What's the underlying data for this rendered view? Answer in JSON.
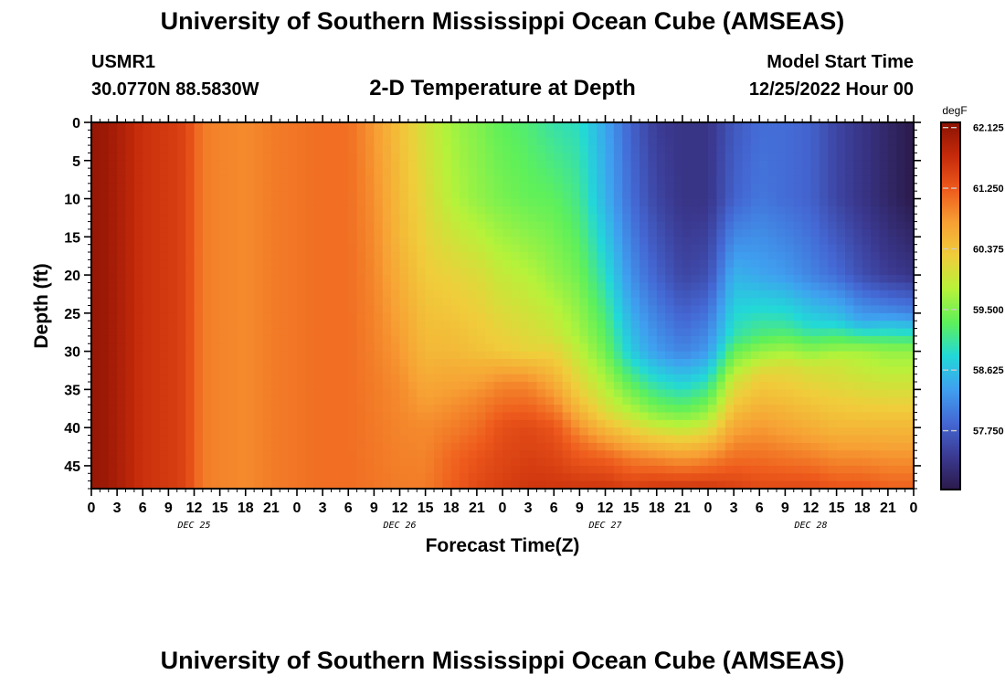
{
  "header": {
    "title": "University of Southern Mississippi Ocean Cube (AMSEAS)",
    "station_id": "USMR1",
    "coordinates": "30.0770N  88.5830W",
    "plot_title": "2-D Temperature at Depth",
    "model_start_label": "Model Start Time",
    "model_start_value": "12/25/2022 Hour 00"
  },
  "footer": {
    "title": "University of Southern Mississippi Ocean Cube (AMSEAS)"
  },
  "chart_data": {
    "type": "heatmap",
    "xlabel": "Forecast Time(Z)",
    "ylabel": "Depth (ft)",
    "x_unit": "hours since model start",
    "xlim": [
      0,
      96
    ],
    "ylim": [
      0,
      48
    ],
    "y_inverted": true,
    "x_ticks": [
      0,
      3,
      6,
      9,
      12,
      15,
      18,
      21,
      24,
      27,
      30,
      33,
      36,
      39,
      42,
      45,
      48,
      51,
      54,
      57,
      60,
      63,
      66,
      69,
      72,
      75,
      78,
      81,
      84,
      87,
      90,
      93,
      96
    ],
    "x_tick_labels": [
      "0",
      "3",
      "6",
      "9",
      "12",
      "15",
      "18",
      "21",
      "0",
      "3",
      "6",
      "9",
      "12",
      "15",
      "18",
      "21",
      "0",
      "3",
      "6",
      "9",
      "12",
      "15",
      "18",
      "21",
      "0",
      "3",
      "6",
      "9",
      "12",
      "15",
      "18",
      "21",
      "0"
    ],
    "day_labels": [
      {
        "x": 12,
        "label": "DEC 25"
      },
      {
        "x": 36,
        "label": "DEC 26"
      },
      {
        "x": 60,
        "label": "DEC 27"
      },
      {
        "x": 84,
        "label": "DEC 28"
      }
    ],
    "y_ticks": [
      0,
      5,
      10,
      15,
      20,
      25,
      30,
      35,
      40,
      45
    ],
    "y_tick_labels": [
      "0",
      "5",
      "10",
      "15",
      "20",
      "25",
      "30",
      "35",
      "40",
      "45"
    ],
    "colorbar": {
      "unit": "degF",
      "min": 56.9,
      "max": 62.2,
      "ticks": [
        62.125,
        61.25,
        60.375,
        59.5,
        58.625,
        57.75
      ],
      "tick_labels": [
        "62.125",
        "61.250",
        "60.375",
        "59.500",
        "58.625",
        "57.750"
      ],
      "colormap": [
        "#2b1a4a",
        "#3b3a92",
        "#4468d4",
        "#3fa0f0",
        "#22d8d8",
        "#5ef05a",
        "#b6f23a",
        "#f0cd3b",
        "#f7a034",
        "#ee5a1c",
        "#c52a0a",
        "#8a1204"
      ]
    },
    "temperature_profiles": [
      {
        "hour": 0,
        "depths_ft": [
          0,
          48
        ],
        "temps_F": [
          62.1,
          62.1
        ]
      },
      {
        "hour": 1.5,
        "depths_ft": [
          0,
          48
        ],
        "temps_F": [
          62.05,
          62.05
        ]
      },
      {
        "hour": 3,
        "depths_ft": [
          0,
          48
        ],
        "temps_F": [
          61.95,
          61.95
        ]
      },
      {
        "hour": 6,
        "depths_ft": [
          0,
          48
        ],
        "temps_F": [
          61.65,
          61.65
        ]
      },
      {
        "hour": 9,
        "depths_ft": [
          0,
          48
        ],
        "temps_F": [
          61.55,
          61.55
        ]
      },
      {
        "hour": 11,
        "depths_ft": [
          0,
          48
        ],
        "temps_F": [
          61.45,
          61.45
        ]
      },
      {
        "hour": 13,
        "depths_ft": [
          0,
          48
        ],
        "temps_F": [
          61.0,
          61.0
        ]
      },
      {
        "hour": 15,
        "depths_ft": [
          0,
          48
        ],
        "temps_F": [
          60.95,
          60.95
        ]
      },
      {
        "hour": 18,
        "depths_ft": [
          0,
          48
        ],
        "temps_F": [
          60.9,
          60.9
        ]
      },
      {
        "hour": 21,
        "depths_ft": [
          0,
          48
        ],
        "temps_F": [
          61.0,
          61.0
        ]
      },
      {
        "hour": 24,
        "depths_ft": [
          0,
          48
        ],
        "temps_F": [
          61.05,
          61.05
        ]
      },
      {
        "hour": 27,
        "depths_ft": [
          0,
          48
        ],
        "temps_F": [
          61.1,
          61.1
        ]
      },
      {
        "hour": 30,
        "depths_ft": [
          0,
          48
        ],
        "temps_F": [
          61.1,
          61.1
        ]
      },
      {
        "hour": 33,
        "depths_ft": [
          0,
          15,
          35,
          48
        ],
        "temps_F": [
          60.8,
          60.9,
          61.0,
          61.05
        ]
      },
      {
        "hour": 36,
        "depths_ft": [
          0,
          15,
          35,
          48
        ],
        "temps_F": [
          60.4,
          60.5,
          60.9,
          61.0
        ]
      },
      {
        "hour": 39,
        "depths_ft": [
          0,
          15,
          30,
          40,
          48
        ],
        "temps_F": [
          60.0,
          60.2,
          60.5,
          60.9,
          61.0
        ]
      },
      {
        "hour": 42,
        "depths_ft": [
          0,
          10,
          20,
          30,
          38,
          44,
          48
        ],
        "temps_F": [
          59.7,
          59.8,
          60.2,
          60.5,
          60.9,
          61.15,
          61.2
        ]
      },
      {
        "hour": 45,
        "depths_ft": [
          0,
          10,
          20,
          30,
          36,
          44,
          48
        ],
        "temps_F": [
          59.5,
          59.6,
          60.1,
          60.4,
          60.9,
          61.3,
          61.4
        ]
      },
      {
        "hour": 48,
        "depths_ft": [
          0,
          10,
          20,
          30,
          34,
          40,
          48
        ],
        "temps_F": [
          59.3,
          59.45,
          59.9,
          60.3,
          60.9,
          61.35,
          61.5
        ]
      },
      {
        "hour": 51,
        "depths_ft": [
          0,
          10,
          20,
          30,
          34,
          40,
          48
        ],
        "temps_F": [
          59.2,
          59.35,
          59.8,
          60.2,
          60.9,
          61.4,
          61.6
        ]
      },
      {
        "hour": 54,
        "depths_ft": [
          0,
          10,
          20,
          28,
          34,
          40,
          48
        ],
        "temps_F": [
          59.0,
          59.3,
          59.6,
          60.0,
          60.6,
          61.3,
          61.6
        ]
      },
      {
        "hour": 57,
        "depths_ft": [
          0,
          10,
          20,
          28,
          36,
          42,
          48
        ],
        "temps_F": [
          58.9,
          59.1,
          59.4,
          59.7,
          60.3,
          61.1,
          61.6
        ]
      },
      {
        "hour": 60,
        "depths_ft": [
          0,
          10,
          20,
          30,
          38,
          44,
          48
        ],
        "temps_F": [
          58.4,
          58.5,
          58.9,
          59.4,
          60.1,
          61.2,
          61.6
        ]
      },
      {
        "hour": 63,
        "depths_ft": [
          0,
          10,
          20,
          30,
          38,
          44,
          48
        ],
        "temps_F": [
          57.8,
          57.9,
          58.2,
          58.7,
          59.8,
          61.0,
          61.5
        ]
      },
      {
        "hour": 66,
        "depths_ft": [
          0,
          10,
          20,
          30,
          38,
          44,
          48
        ],
        "temps_F": [
          57.4,
          57.5,
          57.8,
          58.3,
          59.5,
          60.9,
          61.6
        ]
      },
      {
        "hour": 69,
        "depths_ft": [
          0,
          10,
          20,
          30,
          38,
          44,
          48
        ],
        "temps_F": [
          57.3,
          57.3,
          57.5,
          58.1,
          59.4,
          60.8,
          61.6
        ]
      },
      {
        "hour": 72,
        "depths_ft": [
          0,
          10,
          20,
          30,
          38,
          44,
          48
        ],
        "temps_F": [
          57.3,
          57.3,
          57.6,
          58.3,
          59.6,
          60.9,
          61.6
        ]
      },
      {
        "hour": 75,
        "depths_ft": [
          0,
          10,
          20,
          28,
          34,
          42,
          48
        ],
        "temps_F": [
          57.7,
          57.8,
          58.5,
          59.0,
          60.0,
          60.9,
          61.5
        ]
      },
      {
        "hour": 78,
        "depths_ft": [
          0,
          10,
          20,
          28,
          33,
          40,
          48
        ],
        "temps_F": [
          57.9,
          58.0,
          58.4,
          59.2,
          60.2,
          60.8,
          61.4
        ]
      },
      {
        "hour": 81,
        "depths_ft": [
          0,
          10,
          20,
          27,
          32,
          40,
          48
        ],
        "temps_F": [
          57.9,
          57.9,
          58.3,
          59.1,
          60.1,
          60.7,
          61.4
        ]
      },
      {
        "hour": 84,
        "depths_ft": [
          0,
          10,
          20,
          27,
          32,
          40,
          48
        ],
        "temps_F": [
          57.8,
          57.8,
          58.1,
          58.9,
          60.0,
          60.6,
          61.4
        ]
      },
      {
        "hour": 87,
        "depths_ft": [
          0,
          10,
          20,
          26,
          31,
          40,
          48
        ],
        "temps_F": [
          57.5,
          57.5,
          57.9,
          58.7,
          59.9,
          60.5,
          61.3
        ]
      },
      {
        "hour": 90,
        "depths_ft": [
          0,
          10,
          20,
          26,
          30,
          40,
          48
        ],
        "temps_F": [
          57.3,
          57.3,
          57.6,
          58.4,
          59.7,
          60.5,
          61.3
        ]
      },
      {
        "hour": 93,
        "depths_ft": [
          0,
          10,
          20,
          25,
          30,
          40,
          48
        ],
        "temps_F": [
          57.1,
          57.1,
          57.4,
          58.2,
          59.6,
          60.5,
          61.2
        ]
      },
      {
        "hour": 96,
        "depths_ft": [
          0,
          10,
          20,
          25,
          30,
          40,
          48
        ],
        "temps_F": [
          56.9,
          56.9,
          57.3,
          58.1,
          59.6,
          60.5,
          61.2
        ]
      }
    ]
  }
}
